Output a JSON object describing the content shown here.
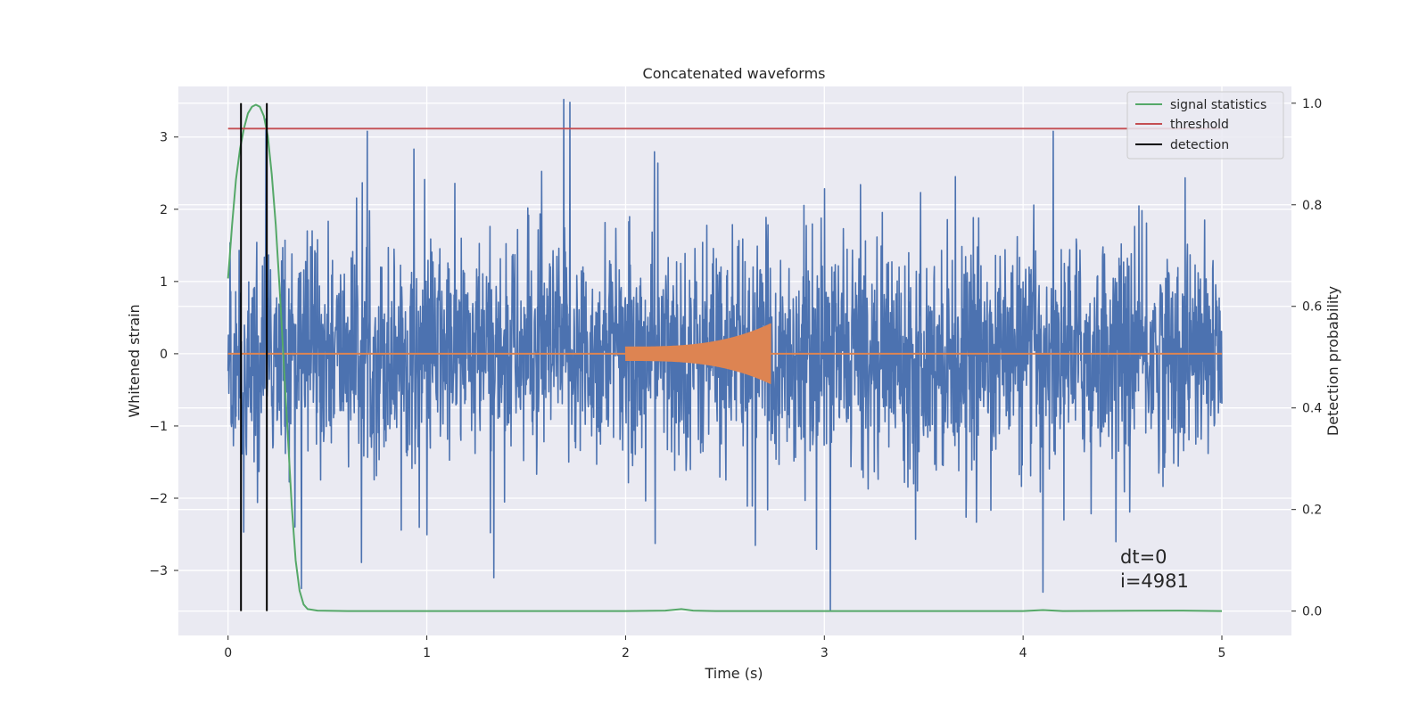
{
  "chart_data": {
    "type": "line",
    "title": "Concatenated waveforms",
    "xlabel": "Time (s)",
    "ylabel": "Whitened strain",
    "y2label": "Detection probability",
    "xlim": [
      -0.25,
      5.35
    ],
    "ylim": [
      -3.9,
      3.7
    ],
    "y2lim": [
      -0.048,
      1.033
    ],
    "xticks": [
      0,
      1,
      2,
      3,
      4,
      5
    ],
    "yticks": [
      -3,
      -2,
      -1,
      0,
      1,
      2,
      3
    ],
    "y2ticks": [
      0.0,
      0.2,
      0.4,
      0.6,
      0.8,
      1.0
    ],
    "xtick_labels": [
      "0",
      "1",
      "2",
      "3",
      "4",
      "5"
    ],
    "ytick_labels": [
      "−3",
      "−2",
      "−1",
      "0",
      "1",
      "2",
      "3"
    ],
    "y2tick_labels": [
      "0.0",
      "0.2",
      "0.4",
      "0.6",
      "0.8",
      "1.0"
    ],
    "grid": true,
    "legend_position": "top-right",
    "legend": [
      "signal statistics",
      "threshold",
      "detection"
    ],
    "colors": {
      "noise": "#4c72b0",
      "template": "#dd8452",
      "signal_statistics": "#55a868",
      "threshold": "#c44e52",
      "detection": "#000000",
      "plot_background": "#eaeaf2",
      "grid": "#ffffff"
    },
    "series": [
      {
        "name": "",
        "axis": "left",
        "kind": "noise",
        "x_range": [
          0,
          5
        ],
        "envelope_std": 0.72,
        "peak_max": 3.5,
        "peak_min": -3.55,
        "notable_peaks": [
          {
            "x": 1.69,
            "y": 3.52
          },
          {
            "x": 1.72,
            "y": 3.48
          },
          {
            "x": 0.19,
            "y": 3.25
          },
          {
            "x": 3.03,
            "y": -3.55
          },
          {
            "x": 4.1,
            "y": -3.3
          },
          {
            "x": 0.37,
            "y": -3.25
          }
        ]
      },
      {
        "name": "",
        "axis": "left",
        "kind": "chirp",
        "x_range": [
          2.0,
          2.73
        ],
        "amplitude_start": 0.1,
        "amplitude_end": 0.42
      },
      {
        "name": "signal statistics",
        "axis": "right",
        "points": [
          [
            0.0,
            0.655
          ],
          [
            0.02,
            0.76
          ],
          [
            0.04,
            0.85
          ],
          [
            0.06,
            0.91
          ],
          [
            0.08,
            0.95
          ],
          [
            0.1,
            0.98
          ],
          [
            0.12,
            0.993
          ],
          [
            0.14,
            0.997
          ],
          [
            0.16,
            0.993
          ],
          [
            0.18,
            0.975
          ],
          [
            0.2,
            0.935
          ],
          [
            0.22,
            0.86
          ],
          [
            0.24,
            0.76
          ],
          [
            0.26,
            0.63
          ],
          [
            0.28,
            0.49
          ],
          [
            0.3,
            0.35
          ],
          [
            0.32,
            0.21
          ],
          [
            0.34,
            0.1
          ],
          [
            0.36,
            0.04
          ],
          [
            0.38,
            0.013
          ],
          [
            0.4,
            0.004
          ],
          [
            0.45,
            0.001
          ],
          [
            0.6,
            0.0
          ],
          [
            1.0,
            0.0
          ],
          [
            2.0,
            0.0
          ],
          [
            2.2,
            0.001
          ],
          [
            2.28,
            0.004
          ],
          [
            2.34,
            0.001
          ],
          [
            2.45,
            0.0
          ],
          [
            3.0,
            0.0
          ],
          [
            4.0,
            0.0
          ],
          [
            4.1,
            0.002
          ],
          [
            4.2,
            0.0
          ],
          [
            4.8,
            0.001
          ],
          [
            5.0,
            0.0
          ]
        ]
      },
      {
        "name": "threshold",
        "axis": "right",
        "y": 0.95,
        "x_range": [
          0,
          5
        ]
      },
      {
        "name": "detection",
        "axis": "right",
        "x": [
          0.065,
          0.195
        ],
        "y_range": [
          0.0,
          1.0
        ]
      }
    ],
    "annotations": [
      {
        "text": "dt=0",
        "x": 4.5,
        "y": -2.7
      },
      {
        "text": "i=4981",
        "x": 4.5,
        "y": -3.05
      }
    ]
  }
}
